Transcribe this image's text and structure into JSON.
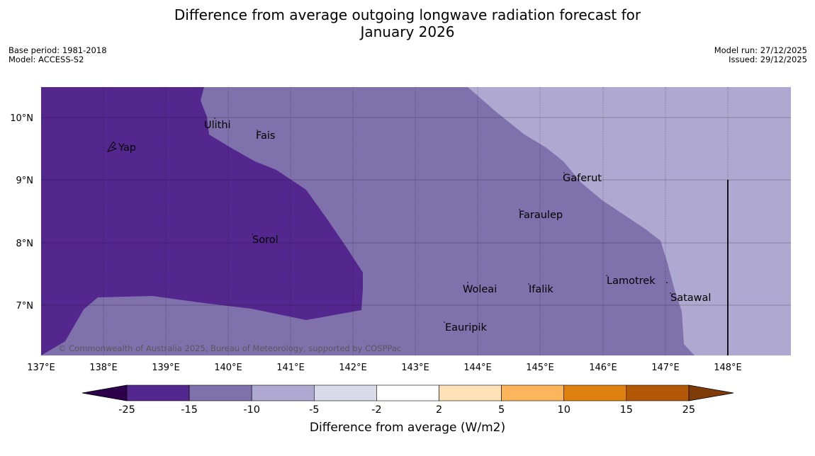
{
  "header": {
    "title_line1": "Difference from average outgoing longwave radiation forecast for",
    "title_line2": "January 2026",
    "base_period": "Base period: 1981-2018",
    "model": "Model: ACCESS-S2",
    "model_run": "Model run: 27/12/2025",
    "issued": "Issued: 29/12/2025"
  },
  "map": {
    "lon_ticks": [
      "137°E",
      "138°E",
      "139°E",
      "140°E",
      "141°E",
      "142°E",
      "143°E",
      "144°E",
      "145°E",
      "146°E",
      "147°E",
      "148°E"
    ],
    "lat_ticks": [
      "10°N",
      "9°N",
      "8°N",
      "7°N"
    ],
    "places": [
      "Yap",
      "Ulithi",
      "Fais",
      "Gaferut",
      "Faraulep",
      "Sorol",
      "Woleai",
      "Ifalik",
      "Lamotrek",
      "Satawal",
      "Eauripik"
    ],
    "copyright": "© Commonwealth of Australia 2025, Bureau of Meteorology, supported by COSPPac"
  },
  "colorbar": {
    "ticks": [
      "-25",
      "-15",
      "-10",
      "-5",
      "-2",
      "2",
      "5",
      "10",
      "15",
      "25"
    ],
    "label": "Difference from average (W/m2)",
    "colors": [
      "#54278f",
      "#7f71ac",
      "#afa8d0",
      "#d9d9ea",
      "#ffffff",
      "#fee1b7",
      "#fdb55c",
      "#e0800f",
      "#b35807"
    ],
    "low_extend": "#2d004b",
    "high_extend": "#7f3b08"
  }
}
